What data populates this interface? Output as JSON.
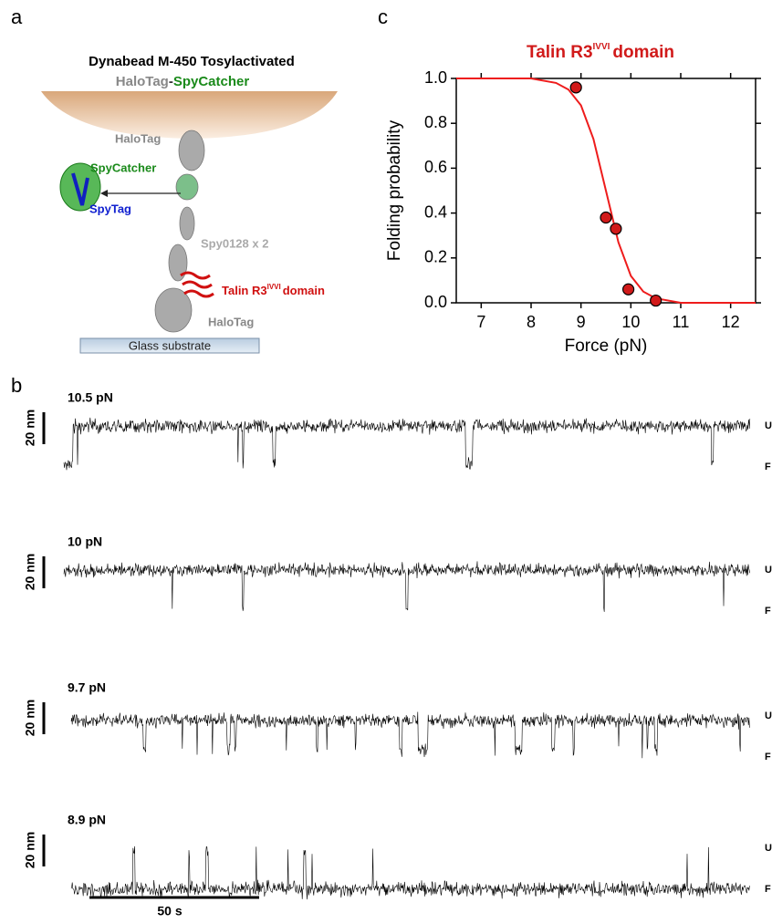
{
  "panels": [
    "a",
    "b",
    "c"
  ],
  "diagram": {
    "title": "Dynabead M-450 Tosylactivated",
    "bead_parts": [
      "HaloTag",
      "-",
      "SpyCatcher"
    ],
    "halotag_top": "HaloTag",
    "spycatcher": "SpyCatcher",
    "spytag": "SpyTag",
    "spy0128": "Spy0128 x 2",
    "talin": "Talin R3",
    "talin_sup": "IVVI",
    "talin_suffix": "domain",
    "halotag_bottom": "HaloTag",
    "substrate": "Glass substrate"
  },
  "traces": {
    "rows": [
      {
        "force": "10.5 pN",
        "scale": "20 nm",
        "upper": "U",
        "lower": "F"
      },
      {
        "force": "10 pN",
        "scale": "20 nm",
        "upper": "U",
        "lower": "F"
      },
      {
        "force": "9.7 pN",
        "scale": "20 nm",
        "upper": "U",
        "lower": "F"
      },
      {
        "force": "8.9 pN",
        "scale": "20 nm",
        "upper": "U",
        "lower": "F"
      }
    ],
    "time_scale": "50 s"
  },
  "chart_data": {
    "type": "scatter",
    "title": "Talin R3",
    "title_sup": "IVVI",
    "title_suffix": "domain",
    "x_label": "Force (pN)",
    "y_label": "Folding probability",
    "x": [
      8.9,
      9.5,
      9.7,
      9.95,
      10.5
    ],
    "values": [
      0.96,
      0.38,
      0.33,
      0.06,
      0.01
    ],
    "color": "#d11a1a",
    "fit": {
      "x": [
        6.5,
        7.5,
        8.0,
        8.5,
        8.75,
        9.0,
        9.25,
        9.5,
        9.75,
        10.0,
        10.25,
        10.5,
        11.0,
        12.5
      ],
      "values": [
        1.0,
        1.0,
        1.0,
        0.98,
        0.95,
        0.88,
        0.73,
        0.5,
        0.27,
        0.12,
        0.05,
        0.02,
        0.0,
        0.0
      ],
      "color": "#ee1c1c"
    },
    "xlim": [
      6.5,
      12.5
    ],
    "ylim": [
      0,
      1
    ],
    "xticks": [
      7,
      8,
      9,
      10,
      11,
      12
    ],
    "yticks": [
      {
        "value": 0,
        "label": "0.0"
      },
      0.2,
      0.4,
      0.6,
      0.8,
      {
        "value": 1,
        "label": "1.0"
      }
    ]
  }
}
